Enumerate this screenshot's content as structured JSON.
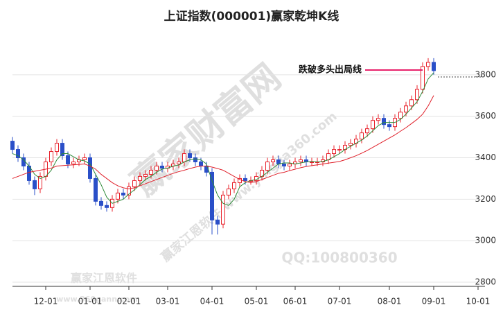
{
  "chart_data": {
    "type": "candlestick",
    "title": "上证指数(000001)赢家乾坤K线",
    "categories": [
      null,
      null,
      null,
      null,
      null,
      null,
      "12-01",
      null,
      null,
      null,
      null,
      null,
      null,
      null,
      "01-01",
      null,
      null,
      null,
      null,
      null,
      null,
      "02-01",
      null,
      null,
      null,
      null,
      null,
      null,
      "03-01",
      null,
      null,
      null,
      null,
      null,
      null,
      null,
      "04-01",
      null,
      null,
      null,
      null,
      null,
      null,
      null,
      "05-01",
      null,
      null,
      null,
      null,
      null,
      null,
      "06-01",
      null,
      null,
      null,
      null,
      null,
      null,
      null,
      "07-01",
      null,
      null,
      null,
      null,
      null,
      null,
      null,
      null,
      "08-01",
      null,
      null,
      null,
      null,
      null,
      null,
      null,
      "09-01",
      null,
      null,
      null,
      null,
      null,
      null,
      null,
      "10-01"
    ],
    "open": [
      3480,
      3440,
      3400,
      3360,
      3290,
      3250,
      3310,
      3380,
      3430,
      3470,
      3410,
      3370,
      3380,
      3390,
      3400,
      3300,
      3190,
      3170,
      3160,
      3200,
      3230,
      3220,
      3260,
      3290,
      3310,
      3320,
      3340,
      3360,
      3350,
      3360,
      3370,
      3380,
      3420,
      3400,
      3380,
      3360,
      3330,
      3100,
      3080,
      3220,
      3250,
      3280,
      3300,
      3290,
      3290,
      3310,
      3340,
      3380,
      3390,
      3370,
      3360,
      3370,
      3380,
      3390,
      3380,
      3380,
      3380,
      3390,
      3420,
      3440,
      3440,
      3460,
      3470,
      3490,
      3520,
      3540,
      3580,
      3590,
      3560,
      3550,
      3590,
      3620,
      3650,
      3680,
      3730,
      3840,
      3860,
      null,
      null,
      null,
      null,
      null,
      null,
      null,
      null
    ],
    "close": [
      3440,
      3400,
      3360,
      3290,
      3250,
      3310,
      3380,
      3430,
      3470,
      3410,
      3370,
      3380,
      3390,
      3400,
      3300,
      3190,
      3170,
      3160,
      3200,
      3230,
      3220,
      3260,
      3290,
      3310,
      3320,
      3340,
      3360,
      3350,
      3360,
      3370,
      3380,
      3420,
      3400,
      3380,
      3360,
      3330,
      3100,
      3080,
      3220,
      3250,
      3280,
      3300,
      3290,
      3290,
      3310,
      3340,
      3380,
      3390,
      3370,
      3360,
      3370,
      3380,
      3390,
      3380,
      3380,
      3380,
      3390,
      3420,
      3440,
      3440,
      3460,
      3470,
      3490,
      3520,
      3540,
      3580,
      3590,
      3560,
      3550,
      3590,
      3620,
      3650,
      3680,
      3730,
      3840,
      3860,
      3820,
      null,
      null,
      null,
      null,
      null,
      null,
      null,
      null
    ],
    "high": [
      3500,
      3460,
      3420,
      3380,
      3310,
      3330,
      3400,
      3450,
      3490,
      3490,
      3430,
      3400,
      3410,
      3420,
      3420,
      3320,
      3210,
      3190,
      3220,
      3250,
      3250,
      3280,
      3310,
      3330,
      3340,
      3360,
      3380,
      3380,
      3380,
      3390,
      3400,
      3440,
      3440,
      3420,
      3400,
      3380,
      3350,
      3120,
      3240,
      3270,
      3300,
      3320,
      3320,
      3310,
      3330,
      3360,
      3400,
      3410,
      3410,
      3390,
      3390,
      3400,
      3410,
      3410,
      3400,
      3400,
      3410,
      3440,
      3460,
      3460,
      3480,
      3490,
      3510,
      3540,
      3560,
      3600,
      3610,
      3610,
      3580,
      3610,
      3640,
      3670,
      3700,
      3750,
      3860,
      3880,
      3880,
      null,
      null,
      null,
      null,
      null,
      null,
      null,
      null
    ],
    "low": [
      3420,
      3380,
      3340,
      3270,
      3220,
      3230,
      3290,
      3360,
      3410,
      3390,
      3350,
      3350,
      3360,
      3370,
      3280,
      3170,
      3150,
      3140,
      3140,
      3180,
      3200,
      3200,
      3240,
      3270,
      3290,
      3300,
      3320,
      3330,
      3330,
      3340,
      3350,
      3360,
      3380,
      3360,
      3340,
      3310,
      3030,
      3030,
      3060,
      3200,
      3230,
      3260,
      3270,
      3270,
      3270,
      3290,
      3320,
      3360,
      3350,
      3340,
      3340,
      3350,
      3360,
      3360,
      3360,
      3360,
      3360,
      3370,
      3400,
      3420,
      3420,
      3440,
      3450,
      3470,
      3500,
      3520,
      3560,
      3540,
      3530,
      3530,
      3570,
      3600,
      3630,
      3660,
      3710,
      3820,
      3800,
      null,
      null,
      null,
      null,
      null,
      null,
      null,
      null
    ],
    "up_color": "#e8202a",
    "down_color": "#2a4fc8",
    "series": [
      {
        "color": "#2e8b3a",
        "values": [
          3420,
          3410,
          3390,
          3360,
          3320,
          3300,
          3310,
          3340,
          3390,
          3420,
          3420,
          3405,
          3390,
          3385,
          3370,
          3320,
          3270,
          3210,
          3180,
          3190,
          3200,
          3225,
          3245,
          3270,
          3295,
          3310,
          3330,
          3345,
          3350,
          3360,
          3365,
          3380,
          3390,
          3395,
          3390,
          3370,
          3290,
          3220,
          3180,
          3170,
          3200,
          3260,
          3280,
          3290,
          3295,
          3310,
          3330,
          3350,
          3370,
          3375,
          3375,
          3370,
          3375,
          3380,
          3382,
          3380,
          3382,
          3390,
          3405,
          3420,
          3440,
          3455,
          3470,
          3485,
          3505,
          3530,
          3555,
          3570,
          3570,
          3570,
          3585,
          3610,
          3640,
          3670,
          3720,
          3780,
          3810,
          null,
          null,
          null,
          null,
          null,
          null,
          null,
          null
        ]
      },
      {
        "color": "#e0202a",
        "values": [
          3300,
          3310,
          3320,
          3330,
          3335,
          3340,
          3345,
          3350,
          3360,
          3362,
          3364,
          3366,
          3368,
          3370,
          3360,
          3345,
          3320,
          3300,
          3280,
          3265,
          3255,
          3250,
          3255,
          3265,
          3275,
          3285,
          3295,
          3305,
          3315,
          3325,
          3333,
          3340,
          3348,
          3355,
          3360,
          3360,
          3355,
          3348,
          3340,
          3325,
          3310,
          3295,
          3285,
          3280,
          3285,
          3295,
          3305,
          3315,
          3325,
          3330,
          3338,
          3345,
          3352,
          3358,
          3362,
          3366,
          3370,
          3374,
          3378,
          3382,
          3390,
          3400,
          3410,
          3422,
          3435,
          3450,
          3465,
          3480,
          3495,
          3510,
          3528,
          3545,
          3565,
          3585,
          3610,
          3650,
          3700,
          null,
          null,
          null,
          null,
          null,
          null,
          null,
          null
        ]
      }
    ],
    "ylim": [
      2780,
      3960
    ],
    "yticks": [
      2800,
      3000,
      3200,
      3400,
      3600,
      3800
    ],
    "grid": true,
    "annotation": {
      "text": "跌破多头出局线",
      "value": 3823,
      "color": "#e8206a"
    },
    "watermarks": [
      "赢家财富网",
      "赢家江恩软件 www.yingjia360.com",
      "QQ:100800360",
      "赢家江恩软件",
      "www.360gann.com"
    ]
  }
}
